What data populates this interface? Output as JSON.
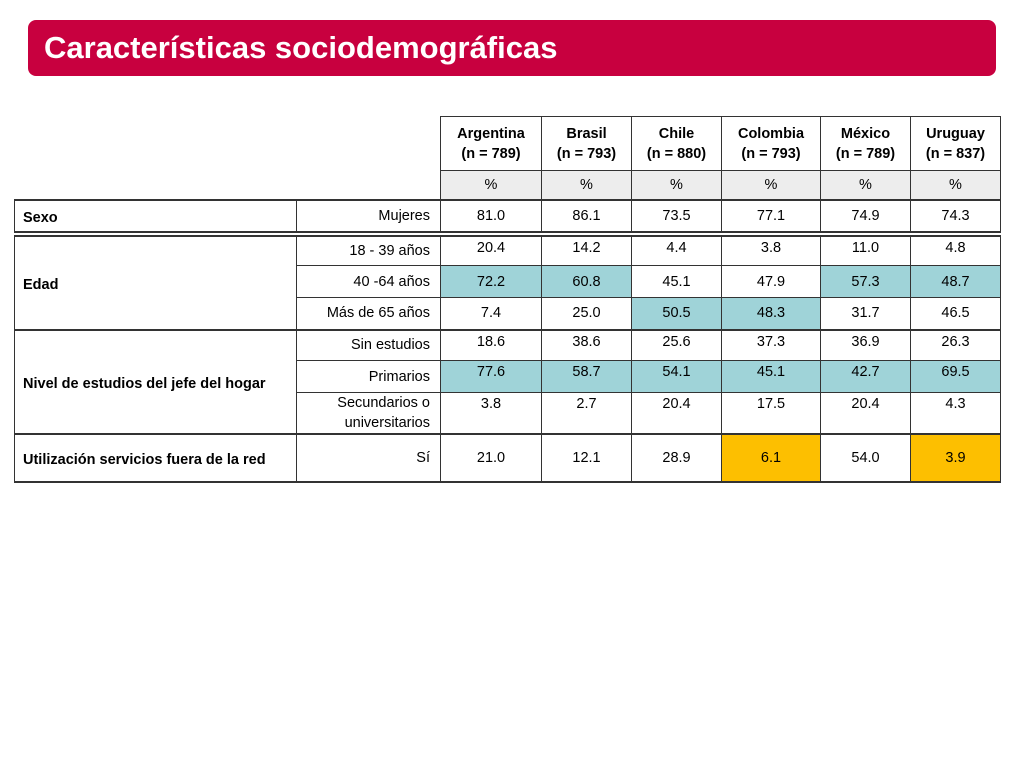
{
  "title": "Características sociodemográficas",
  "columns": [
    {
      "name": "Argentina",
      "n": "(n = 789)",
      "unit": "%"
    },
    {
      "name": "Brasil",
      "n": "(n = 793)",
      "unit": "%"
    },
    {
      "name": "Chile",
      "n": "(n = 880)",
      "unit": "%"
    },
    {
      "name": "Colombia",
      "n": "(n = 793)",
      "unit": "%"
    },
    {
      "name": "México",
      "n": "(n = 789)",
      "unit": "%"
    },
    {
      "name": "Uruguay",
      "n": "(n = 837)",
      "unit": "%"
    }
  ],
  "highlight_colors": {
    "blue": "#9fd3d8",
    "gold": "#fdbf00",
    "header": "#c8003f"
  },
  "groups": [
    {
      "label": "Sexo",
      "rows": [
        {
          "label": "Mujeres",
          "values": [
            "81.0",
            "86.1",
            "73.5",
            "77.1",
            "74.9",
            "74.3"
          ],
          "highlight": [
            null,
            null,
            null,
            null,
            null,
            null
          ]
        }
      ]
    },
    {
      "label": "Edad",
      "rows": [
        {
          "label": "18 - 39 años",
          "values": [
            "20.4",
            "14.2",
            "4.4",
            "3.8",
            "11.0",
            "4.8"
          ],
          "highlight": [
            null,
            null,
            null,
            null,
            null,
            null
          ]
        },
        {
          "label": "40 -64 años",
          "values": [
            "72.2",
            "60.8",
            "45.1",
            "47.9",
            "57.3",
            "48.7"
          ],
          "highlight": [
            "blue",
            "blue",
            null,
            null,
            "blue",
            "blue"
          ]
        },
        {
          "label": "Más de 65 años",
          "values": [
            "7.4",
            "25.0",
            "50.5",
            "48.3",
            "31.7",
            "46.5"
          ],
          "highlight": [
            null,
            null,
            "blue",
            "blue",
            null,
            null
          ]
        }
      ]
    },
    {
      "label": "Nivel de estudios del jefe del hogar",
      "rows": [
        {
          "label": "Sin estudios",
          "values": [
            "18.6",
            "38.6",
            "25.6",
            "37.3",
            "36.9",
            "26.3"
          ],
          "highlight": [
            null,
            null,
            null,
            null,
            null,
            null
          ]
        },
        {
          "label": "Primarios",
          "values": [
            "77.6",
            "58.7",
            "54.1",
            "45.1",
            "42.7",
            "69.5"
          ],
          "highlight": [
            "blue",
            "blue",
            "blue",
            "blue",
            "blue",
            "blue"
          ]
        },
        {
          "label": "Secundarios o universitarios",
          "values": [
            "3.8",
            "2.7",
            "20.4",
            "17.5",
            "20.4",
            "4.3"
          ],
          "highlight": [
            null,
            null,
            null,
            null,
            null,
            null
          ]
        }
      ]
    },
    {
      "label": "Utilización servicios fuera de la red",
      "rows": [
        {
          "label": "Sí",
          "values": [
            "21.0",
            "12.1",
            "28.9",
            "6.1",
            "54.0",
            "3.9"
          ],
          "highlight": [
            null,
            null,
            null,
            "gold",
            null,
            "gold"
          ]
        }
      ]
    }
  ]
}
